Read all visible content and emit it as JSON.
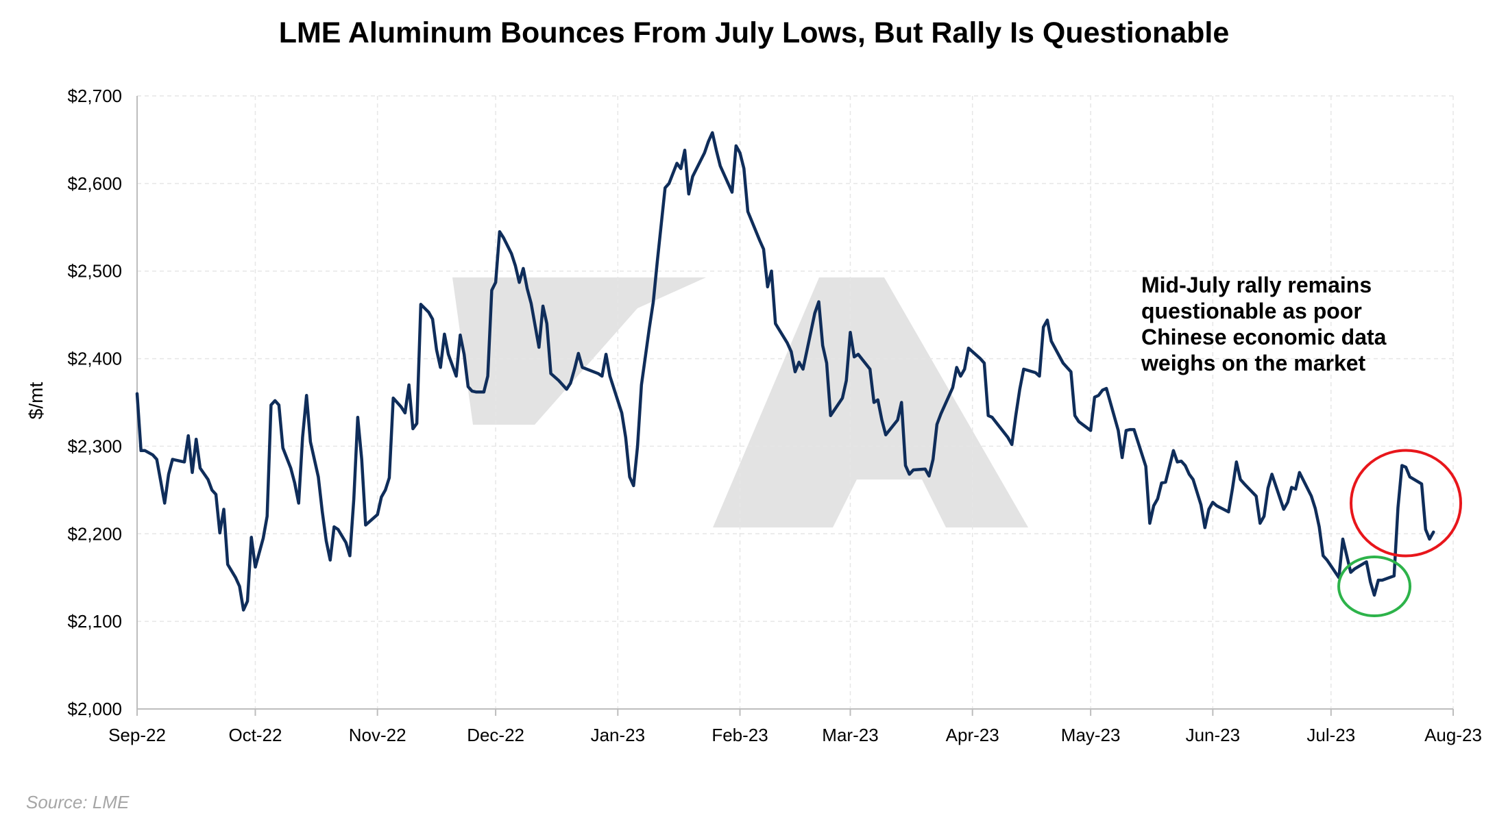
{
  "chart_data": {
    "type": "line",
    "title": "LME Aluminum Bounces From July Lows, But Rally Is Questionable",
    "ylabel": "$/mt",
    "xlabel": "",
    "ylim": [
      2000,
      2700
    ],
    "xlim": [
      "2022-09-01",
      "2023-08-01"
    ],
    "grid": true,
    "y_ticks": [
      2000,
      2100,
      2200,
      2300,
      2400,
      2500,
      2600,
      2700
    ],
    "y_tick_labels": [
      "$2,000",
      "$2,100",
      "$2,200",
      "$2,300",
      "$2,400",
      "$2,500",
      "$2,600",
      "$2,700"
    ],
    "x_ticks": [
      "2022-09-01",
      "2022-10-01",
      "2022-11-01",
      "2022-12-01",
      "2023-01-01",
      "2023-02-01",
      "2023-03-01",
      "2023-04-01",
      "2023-05-01",
      "2023-06-01",
      "2023-07-01",
      "2023-08-01"
    ],
    "x_tick_labels": [
      "Sep-22",
      "Oct-22",
      "Nov-22",
      "Dec-22",
      "Jan-23",
      "Feb-23",
      "Mar-23",
      "Apr-23",
      "May-23",
      "Jun-23",
      "Jul-23",
      "Aug-23"
    ],
    "series_color": "#0f2d5a",
    "series": [
      {
        "name": "",
        "points": [
          [
            "2022-09-01",
            2360
          ],
          [
            "2022-09-02",
            2295
          ],
          [
            "2022-09-03",
            2295
          ],
          [
            "2022-09-05",
            2290
          ],
          [
            "2022-09-06",
            2285
          ],
          [
            "2022-09-07",
            2260
          ],
          [
            "2022-09-08",
            2235
          ],
          [
            "2022-09-09",
            2268
          ],
          [
            "2022-09-10",
            2285
          ],
          [
            "2022-09-12",
            2283
          ],
          [
            "2022-09-13",
            2282
          ],
          [
            "2022-09-14",
            2312
          ],
          [
            "2022-09-15",
            2270
          ],
          [
            "2022-09-16",
            2308
          ],
          [
            "2022-09-17",
            2275
          ],
          [
            "2022-09-19",
            2262
          ],
          [
            "2022-09-20",
            2250
          ],
          [
            "2022-09-21",
            2245
          ],
          [
            "2022-09-22",
            2201
          ],
          [
            "2022-09-23",
            2228
          ],
          [
            "2022-09-24",
            2165
          ],
          [
            "2022-09-26",
            2150
          ],
          [
            "2022-09-27",
            2140
          ],
          [
            "2022-09-28",
            2113
          ],
          [
            "2022-09-29",
            2123
          ],
          [
            "2022-09-30",
            2196
          ],
          [
            "2022-10-01",
            2162
          ],
          [
            "2022-10-03",
            2195
          ],
          [
            "2022-10-04",
            2220
          ],
          [
            "2022-10-05",
            2347
          ],
          [
            "2022-10-06",
            2352
          ],
          [
            "2022-10-07",
            2347
          ],
          [
            "2022-10-08",
            2298
          ],
          [
            "2022-10-10",
            2275
          ],
          [
            "2022-10-11",
            2258
          ],
          [
            "2022-10-12",
            2235
          ],
          [
            "2022-10-13",
            2310
          ],
          [
            "2022-10-14",
            2358
          ],
          [
            "2022-10-15",
            2305
          ],
          [
            "2022-10-17",
            2265
          ],
          [
            "2022-10-18",
            2225
          ],
          [
            "2022-10-19",
            2192
          ],
          [
            "2022-10-20",
            2170
          ],
          [
            "2022-10-21",
            2208
          ],
          [
            "2022-10-22",
            2205
          ],
          [
            "2022-10-24",
            2190
          ],
          [
            "2022-10-25",
            2175
          ],
          [
            "2022-10-26",
            2240
          ],
          [
            "2022-10-27",
            2333
          ],
          [
            "2022-10-28",
            2285
          ],
          [
            "2022-10-29",
            2210
          ],
          [
            "2022-10-31",
            2218
          ],
          [
            "2022-11-01",
            2222
          ],
          [
            "2022-11-02",
            2242
          ],
          [
            "2022-11-03",
            2250
          ],
          [
            "2022-11-04",
            2264
          ],
          [
            "2022-11-05",
            2355
          ],
          [
            "2022-11-07",
            2345
          ],
          [
            "2022-11-08",
            2338
          ],
          [
            "2022-11-09",
            2370
          ],
          [
            "2022-11-10",
            2320
          ],
          [
            "2022-11-11",
            2326
          ],
          [
            "2022-11-12",
            2462
          ],
          [
            "2022-11-14",
            2453
          ],
          [
            "2022-11-15",
            2445
          ],
          [
            "2022-11-16",
            2410
          ],
          [
            "2022-11-17",
            2390
          ],
          [
            "2022-11-18",
            2428
          ],
          [
            "2022-11-19",
            2405
          ],
          [
            "2022-11-21",
            2380
          ],
          [
            "2022-11-22",
            2427
          ],
          [
            "2022-11-23",
            2405
          ],
          [
            "2022-11-24",
            2368
          ],
          [
            "2022-11-25",
            2363
          ],
          [
            "2022-11-26",
            2362
          ],
          [
            "2022-11-28",
            2362
          ],
          [
            "2022-11-29",
            2380
          ],
          [
            "2022-11-30",
            2478
          ],
          [
            "2022-12-01",
            2487
          ],
          [
            "2022-12-02",
            2545
          ],
          [
            "2022-12-03",
            2538
          ],
          [
            "2022-12-05",
            2520
          ],
          [
            "2022-12-06",
            2506
          ],
          [
            "2022-12-07",
            2487
          ],
          [
            "2022-12-08",
            2503
          ],
          [
            "2022-12-09",
            2480
          ],
          [
            "2022-12-10",
            2463
          ],
          [
            "2022-12-12",
            2413
          ],
          [
            "2022-12-13",
            2460
          ],
          [
            "2022-12-14",
            2440
          ],
          [
            "2022-12-15",
            2383
          ],
          [
            "2022-12-17",
            2375
          ],
          [
            "2022-12-19",
            2365
          ],
          [
            "2022-12-20",
            2372
          ],
          [
            "2022-12-21",
            2388
          ],
          [
            "2022-12-22",
            2406
          ],
          [
            "2022-12-23",
            2390
          ],
          [
            "2022-12-27",
            2383
          ],
          [
            "2022-12-28",
            2380
          ],
          [
            "2022-12-29",
            2405
          ],
          [
            "2022-12-30",
            2380
          ],
          [
            "2023-01-02",
            2338
          ],
          [
            "2023-01-03",
            2310
          ],
          [
            "2023-01-04",
            2265
          ],
          [
            "2023-01-05",
            2255
          ],
          [
            "2023-01-06",
            2300
          ],
          [
            "2023-01-07",
            2370
          ],
          [
            "2023-01-09",
            2435
          ],
          [
            "2023-01-10",
            2465
          ],
          [
            "2023-01-11",
            2510
          ],
          [
            "2023-01-13",
            2595
          ],
          [
            "2023-01-14",
            2600
          ],
          [
            "2023-01-16",
            2623
          ],
          [
            "2023-01-17",
            2617
          ],
          [
            "2023-01-18",
            2638
          ],
          [
            "2023-01-19",
            2588
          ],
          [
            "2023-01-20",
            2608
          ],
          [
            "2023-01-23",
            2635
          ],
          [
            "2023-01-24",
            2648
          ],
          [
            "2023-01-25",
            2658
          ],
          [
            "2023-01-26",
            2638
          ],
          [
            "2023-01-27",
            2620
          ],
          [
            "2023-01-30",
            2590
          ],
          [
            "2023-01-31",
            2643
          ],
          [
            "2023-02-01",
            2635
          ],
          [
            "2023-02-02",
            2617
          ],
          [
            "2023-02-03",
            2568
          ],
          [
            "2023-02-06",
            2535
          ],
          [
            "2023-02-07",
            2525
          ],
          [
            "2023-02-08",
            2482
          ],
          [
            "2023-02-09",
            2500
          ],
          [
            "2023-02-10",
            2440
          ],
          [
            "2023-02-13",
            2418
          ],
          [
            "2023-02-14",
            2408
          ],
          [
            "2023-02-15",
            2385
          ],
          [
            "2023-02-16",
            2396
          ],
          [
            "2023-02-17",
            2388
          ],
          [
            "2023-02-20",
            2452
          ],
          [
            "2023-02-21",
            2465
          ],
          [
            "2023-02-22",
            2415
          ],
          [
            "2023-02-23",
            2395
          ],
          [
            "2023-02-24",
            2335
          ],
          [
            "2023-02-27",
            2355
          ],
          [
            "2023-02-28",
            2375
          ],
          [
            "2023-03-01",
            2430
          ],
          [
            "2023-03-02",
            2402
          ],
          [
            "2023-03-03",
            2405
          ],
          [
            "2023-03-06",
            2388
          ],
          [
            "2023-03-07",
            2350
          ],
          [
            "2023-03-08",
            2353
          ],
          [
            "2023-03-09",
            2330
          ],
          [
            "2023-03-10",
            2313
          ],
          [
            "2023-03-13",
            2330
          ],
          [
            "2023-03-14",
            2350
          ],
          [
            "2023-03-15",
            2278
          ],
          [
            "2023-03-16",
            2268
          ],
          [
            "2023-03-17",
            2273
          ],
          [
            "2023-03-20",
            2274
          ],
          [
            "2023-03-21",
            2266
          ],
          [
            "2023-03-22",
            2285
          ],
          [
            "2023-03-23",
            2325
          ],
          [
            "2023-03-24",
            2337
          ],
          [
            "2023-03-27",
            2367
          ],
          [
            "2023-03-28",
            2390
          ],
          [
            "2023-03-29",
            2380
          ],
          [
            "2023-03-30",
            2388
          ],
          [
            "2023-03-31",
            2412
          ],
          [
            "2023-04-03",
            2400
          ],
          [
            "2023-04-04",
            2395
          ],
          [
            "2023-04-05",
            2335
          ],
          [
            "2023-04-06",
            2333
          ],
          [
            "2023-04-10",
            2310
          ],
          [
            "2023-04-11",
            2302
          ],
          [
            "2023-04-12",
            2335
          ],
          [
            "2023-04-13",
            2365
          ],
          [
            "2023-04-14",
            2388
          ],
          [
            "2023-04-17",
            2384
          ],
          [
            "2023-04-18",
            2380
          ],
          [
            "2023-04-19",
            2436
          ],
          [
            "2023-04-20",
            2444
          ],
          [
            "2023-04-21",
            2420
          ],
          [
            "2023-04-24",
            2395
          ],
          [
            "2023-04-25",
            2390
          ],
          [
            "2023-04-26",
            2385
          ],
          [
            "2023-04-27",
            2335
          ],
          [
            "2023-04-28",
            2328
          ],
          [
            "2023-05-01",
            2318
          ],
          [
            "2023-05-02",
            2356
          ],
          [
            "2023-05-03",
            2358
          ],
          [
            "2023-05-04",
            2364
          ],
          [
            "2023-05-05",
            2366
          ],
          [
            "2023-05-08",
            2318
          ],
          [
            "2023-05-09",
            2287
          ],
          [
            "2023-05-10",
            2318
          ],
          [
            "2023-05-11",
            2319
          ],
          [
            "2023-05-12",
            2319
          ],
          [
            "2023-05-15",
            2277
          ],
          [
            "2023-05-16",
            2212
          ],
          [
            "2023-05-17",
            2232
          ],
          [
            "2023-05-18",
            2240
          ],
          [
            "2023-05-19",
            2258
          ],
          [
            "2023-05-20",
            2259
          ],
          [
            "2023-05-22",
            2295
          ],
          [
            "2023-05-23",
            2282
          ],
          [
            "2023-05-24",
            2283
          ],
          [
            "2023-05-25",
            2278
          ],
          [
            "2023-05-26",
            2268
          ],
          [
            "2023-05-27",
            2262
          ],
          [
            "2023-05-29",
            2233
          ],
          [
            "2023-05-30",
            2207
          ],
          [
            "2023-05-31",
            2228
          ],
          [
            "2023-06-01",
            2236
          ],
          [
            "2023-06-02",
            2232
          ],
          [
            "2023-06-05",
            2225
          ],
          [
            "2023-06-06",
            2252
          ],
          [
            "2023-06-07",
            2282
          ],
          [
            "2023-06-08",
            2262
          ],
          [
            "2023-06-09",
            2257
          ],
          [
            "2023-06-12",
            2243
          ],
          [
            "2023-06-13",
            2212
          ],
          [
            "2023-06-14",
            2220
          ],
          [
            "2023-06-15",
            2252
          ],
          [
            "2023-06-16",
            2268
          ],
          [
            "2023-06-19",
            2228
          ],
          [
            "2023-06-20",
            2236
          ],
          [
            "2023-06-21",
            2253
          ],
          [
            "2023-06-22",
            2251
          ],
          [
            "2023-06-23",
            2270
          ],
          [
            "2023-06-26",
            2243
          ],
          [
            "2023-06-27",
            2229
          ],
          [
            "2023-06-28",
            2208
          ],
          [
            "2023-06-29",
            2175
          ],
          [
            "2023-06-30",
            2170
          ],
          [
            "2023-07-03",
            2150
          ],
          [
            "2023-07-04",
            2194
          ],
          [
            "2023-07-05",
            2175
          ],
          [
            "2023-07-06",
            2156
          ],
          [
            "2023-07-07",
            2160
          ],
          [
            "2023-07-10",
            2168
          ],
          [
            "2023-07-11",
            2145
          ],
          [
            "2023-07-12",
            2130
          ],
          [
            "2023-07-13",
            2147
          ],
          [
            "2023-07-14",
            2147
          ],
          [
            "2023-07-17",
            2152
          ],
          [
            "2023-07-18",
            2230
          ],
          [
            "2023-07-19",
            2278
          ],
          [
            "2023-07-20",
            2276
          ],
          [
            "2023-07-21",
            2265
          ],
          [
            "2023-07-24",
            2257
          ],
          [
            "2023-07-25",
            2205
          ],
          [
            "2023-07-26",
            2194
          ],
          [
            "2023-07-27",
            2202
          ]
        ]
      }
    ],
    "annotations": {
      "note_lines": [
        "Mid-July rally remains",
        "questionable as poor",
        "Chinese economic data",
        "weighs on the market"
      ],
      "low_circle": {
        "x": "2023-07-12",
        "y": 2140,
        "color": "#2db34a"
      },
      "rally_circle": {
        "x": "2023-07-20",
        "y": 2235,
        "color": "#e8161b"
      }
    },
    "source": "Source: LME",
    "watermark_color": "#e3e3e3",
    "grid_color": "#e6e6e6",
    "axis_color": "#bdbdbd"
  }
}
